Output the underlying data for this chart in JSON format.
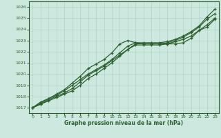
{
  "xlabel": "Graphe pression niveau de la mer (hPa)",
  "x_ticks": [
    0,
    1,
    2,
    3,
    4,
    5,
    6,
    7,
    8,
    9,
    10,
    11,
    12,
    13,
    14,
    15,
    16,
    17,
    18,
    19,
    20,
    21,
    22,
    23
  ],
  "xlim": [
    -0.5,
    23.5
  ],
  "ylim": [
    1016.5,
    1026.5
  ],
  "yticks": [
    1017,
    1018,
    1019,
    1020,
    1021,
    1022,
    1023,
    1024,
    1025,
    1026
  ],
  "bg_color": "#cde8de",
  "grid_color": "#b0d4c8",
  "line_color": "#2d6030",
  "series": [
    [
      1017.0,
      1017.3,
      1017.6,
      1017.9,
      1018.2,
      1018.5,
      1019.0,
      1019.6,
      1020.0,
      1020.5,
      1021.0,
      1021.6,
      1022.2,
      1022.7,
      1022.7,
      1022.7,
      1022.7,
      1022.7,
      1022.7,
      1022.8,
      1023.2,
      1023.9,
      1024.2,
      1024.9
    ],
    [
      1017.0,
      1017.3,
      1017.7,
      1018.0,
      1018.3,
      1018.7,
      1019.3,
      1019.9,
      1020.3,
      1020.7,
      1021.2,
      1021.7,
      1022.2,
      1022.6,
      1022.6,
      1022.6,
      1022.6,
      1022.7,
      1022.9,
      1023.1,
      1023.4,
      1023.9,
      1024.4,
      1025.0
    ],
    [
      1017.0,
      1017.4,
      1017.8,
      1018.1,
      1018.5,
      1019.0,
      1019.5,
      1020.0,
      1020.4,
      1020.8,
      1021.3,
      1021.9,
      1022.5,
      1022.8,
      1022.7,
      1022.7,
      1022.7,
      1022.8,
      1023.0,
      1023.3,
      1023.7,
      1024.2,
      1024.9,
      1025.4
    ],
    [
      1017.0,
      1017.5,
      1017.8,
      1018.2,
      1018.6,
      1019.2,
      1019.8,
      1020.5,
      1020.9,
      1021.3,
      1021.9,
      1022.7,
      1023.0,
      1022.8,
      1022.8,
      1022.8,
      1022.8,
      1022.9,
      1023.1,
      1023.4,
      1023.8,
      1024.3,
      1025.1,
      1025.8
    ]
  ]
}
